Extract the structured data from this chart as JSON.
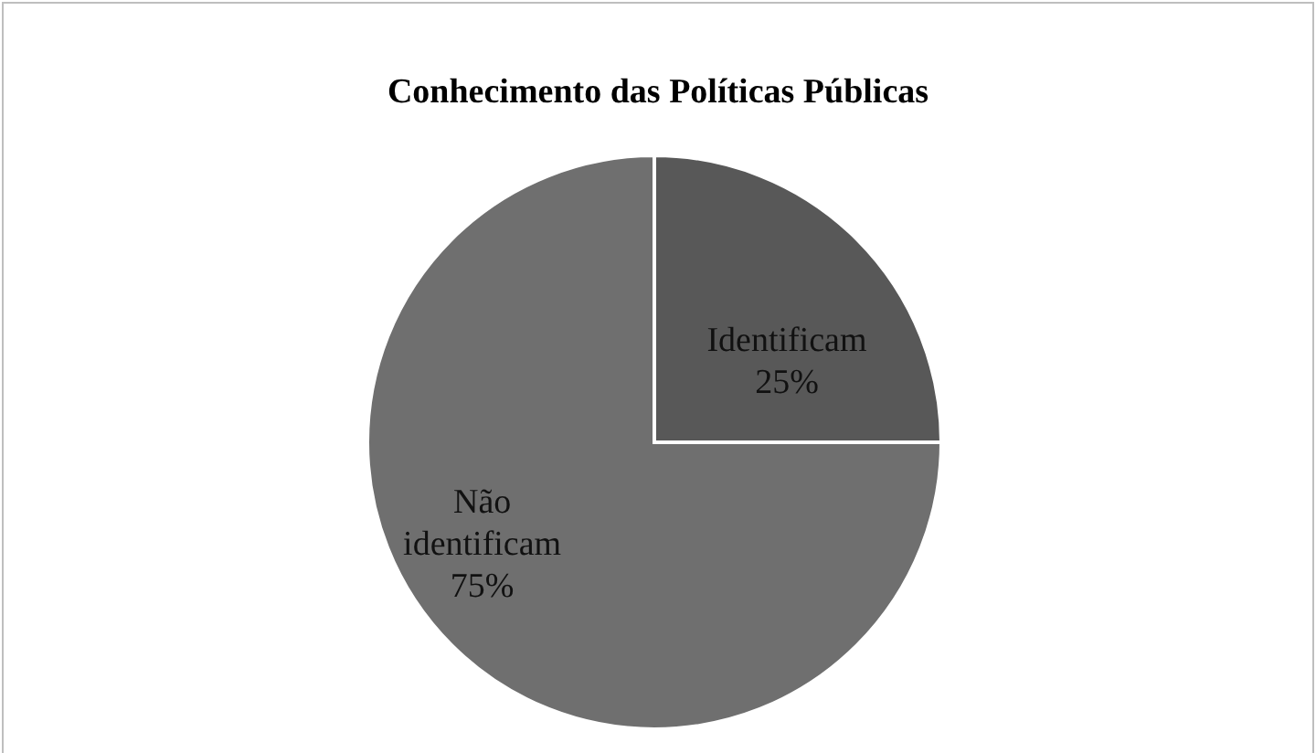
{
  "chart_data": {
    "type": "pie",
    "title": "Conhecimento das Políticas Públicas",
    "categories": [
      "Identificam",
      "Não identificam"
    ],
    "values": [
      25,
      75
    ],
    "colors": [
      "#585858",
      "#6f6f6f"
    ],
    "value_labels": [
      "25%",
      "75%"
    ],
    "legend": false
  }
}
